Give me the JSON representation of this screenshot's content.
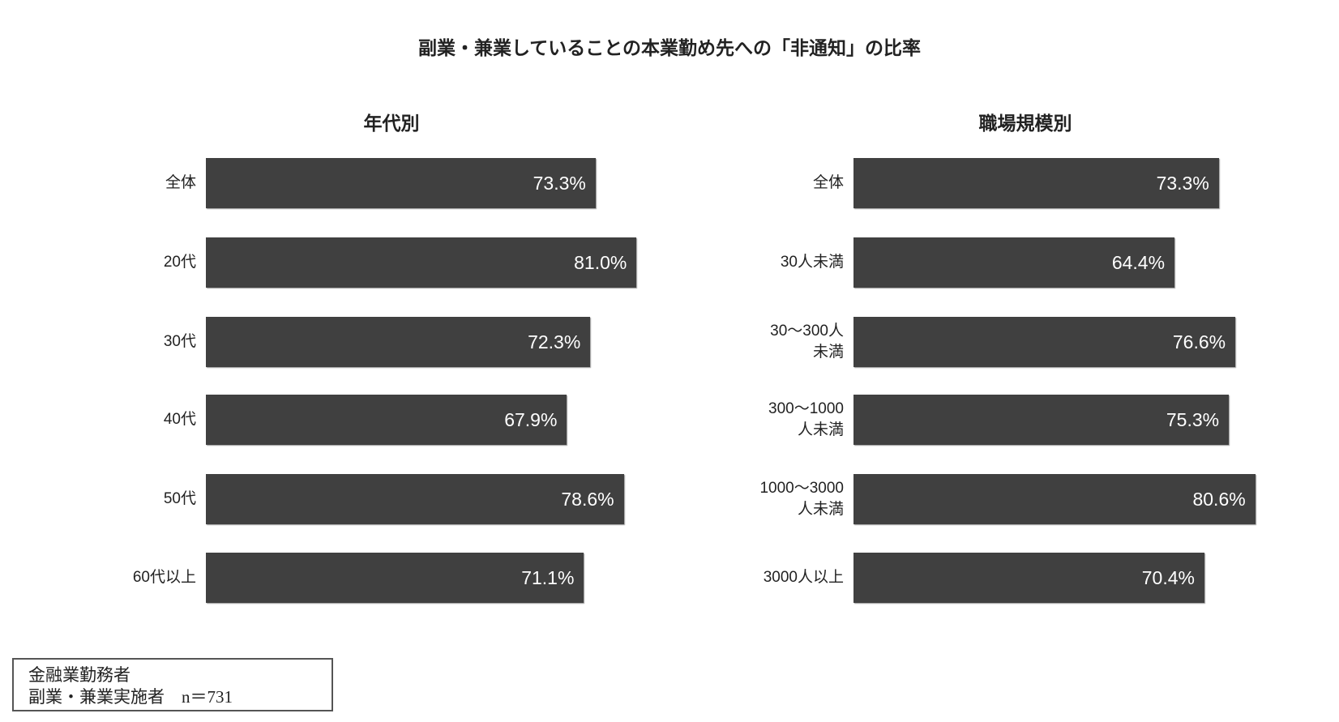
{
  "chart_data": [
    {
      "type": "bar",
      "orientation": "horizontal",
      "title": "副業・兼業していることの本業勤め先への「非通知」の比率",
      "subtitle": "年代別",
      "categories": [
        "全体",
        "20代",
        "30代",
        "40代",
        "50代",
        "60代以上"
      ],
      "values": [
        73.3,
        81.0,
        72.3,
        67.9,
        78.6,
        71.1
      ],
      "labels": [
        "73.3%",
        "81.0%",
        "72.3%",
        "67.9%",
        "78.6%",
        "71.1%"
      ],
      "color": "#404040",
      "unit": "%"
    },
    {
      "type": "bar",
      "orientation": "horizontal",
      "subtitle": "職場規模別",
      "categories": [
        "全体",
        "30人未満",
        "30～300人\n未満",
        "300～1000\n人未満",
        "1000～3000\n人未満",
        "3000人以上"
      ],
      "values": [
        73.3,
        64.4,
        76.6,
        75.3,
        80.6,
        70.4
      ],
      "labels": [
        "73.3%",
        "64.4%",
        "76.6%",
        "75.3%",
        "80.6%",
        "70.4%"
      ],
      "color": "#404040",
      "unit": "%"
    }
  ],
  "note": {
    "line1": "金融業勤務者",
    "line2": "副業・兼業実施者　n＝731"
  }
}
